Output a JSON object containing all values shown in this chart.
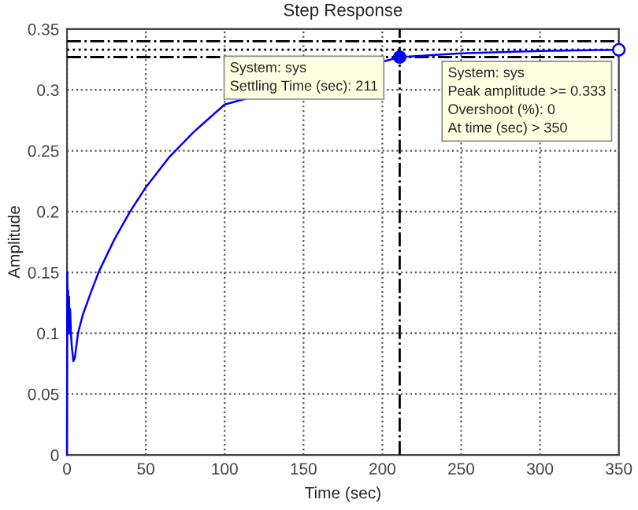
{
  "chart_data": {
    "type": "line",
    "title": "Step Response",
    "xlabel": "Time (sec)",
    "ylabel": "Amplitude",
    "xlim": [
      0,
      350
    ],
    "ylim": [
      0,
      0.35
    ],
    "xticks": [
      0,
      50,
      100,
      150,
      200,
      250,
      300,
      350
    ],
    "yticks": [
      0,
      0.05,
      0.1,
      0.15,
      0.2,
      0.25,
      0.3,
      0.35
    ],
    "grid": true,
    "series": [
      {
        "color": "#0000ff",
        "marker": "none",
        "x": [
          0,
          0.2,
          0.4,
          0.7,
          1.0,
          1.3,
          1.6,
          2.0,
          2.5,
          3.0,
          4.0,
          5.0,
          7.0,
          10,
          15,
          20,
          30,
          40,
          50,
          65,
          80,
          100,
          125,
          150,
          175,
          211,
          250,
          300,
          350
        ],
        "values": [
          0,
          0.15,
          0.1,
          0.135,
          0.1,
          0.13,
          0.1,
          0.12,
          0.1,
          0.09,
          0.077,
          0.08,
          0.1,
          0.115,
          0.133,
          0.15,
          0.177,
          0.2,
          0.22,
          0.245,
          0.265,
          0.288,
          null,
          null,
          null,
          0.327,
          0.33,
          0.332,
          0.333
        ]
      },
      {
        "color": "#0000ff",
        "type": "scatter",
        "marker": "circle",
        "x": [
          211
        ],
        "values": [
          0.327
        ]
      },
      {
        "color": "#0000ff",
        "type": "scatter",
        "marker": "circle",
        "x": [
          350
        ],
        "values": [
          0.333
        ]
      }
    ],
    "ref_lines": [
      {
        "axis": "y",
        "value": 0.34,
        "color": "#000000",
        "line_style": "dashdot"
      },
      {
        "axis": "y",
        "value": 0.333,
        "color": "#000000",
        "line_style": "dotted"
      },
      {
        "axis": "y",
        "value": 0.327,
        "color": "#000000",
        "line_style": "dashdot"
      },
      {
        "axis": "x",
        "value": 211,
        "color": "#000000",
        "line_style": "dashdot"
      }
    ],
    "annotations": [
      "System: sys\nSettling Time (sec): 211",
      "System: sys\nPeak amplitude >= 0.333\nOvershoot (%): 0\nAt time (sec) > 350"
    ]
  }
}
